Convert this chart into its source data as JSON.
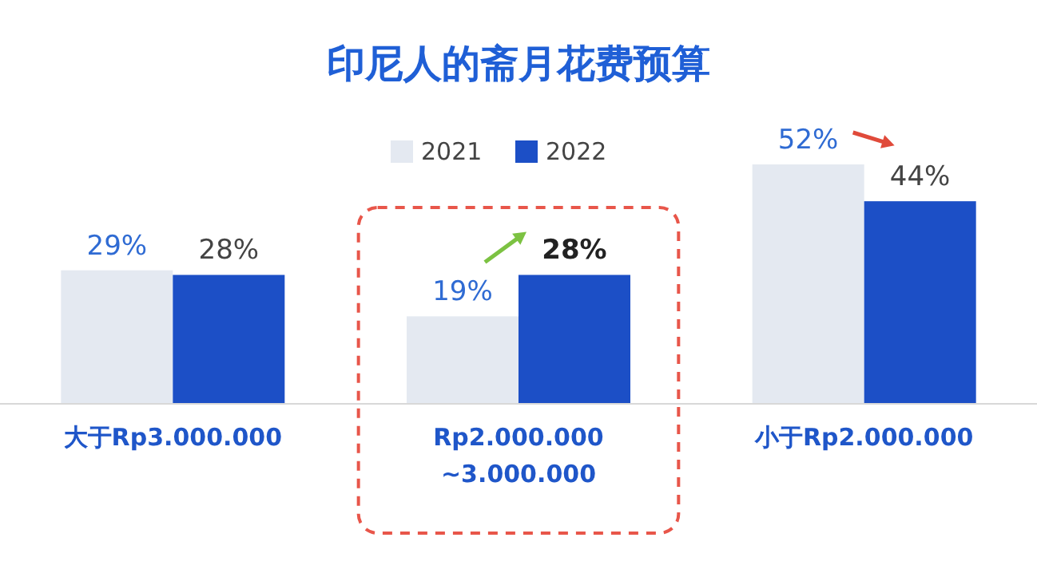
{
  "chart_data": {
    "type": "bar",
    "title": "印尼人的斋月花费预算",
    "categories": [
      "大于Rp3.000.000",
      "Rp2.000.000\n~3.000.000",
      "小于Rp2.000.000"
    ],
    "series": [
      {
        "name": "2021",
        "color": "#e4e9f1",
        "values": [
          29,
          19,
          52
        ],
        "value_labels": [
          "29%",
          "19%",
          "52%"
        ]
      },
      {
        "name": "2022",
        "color": "#1c4fc6",
        "values": [
          28,
          28,
          44
        ],
        "value_labels": [
          "28%",
          "28%",
          "44%"
        ]
      }
    ],
    "legend": "top",
    "grid": false
  }
}
